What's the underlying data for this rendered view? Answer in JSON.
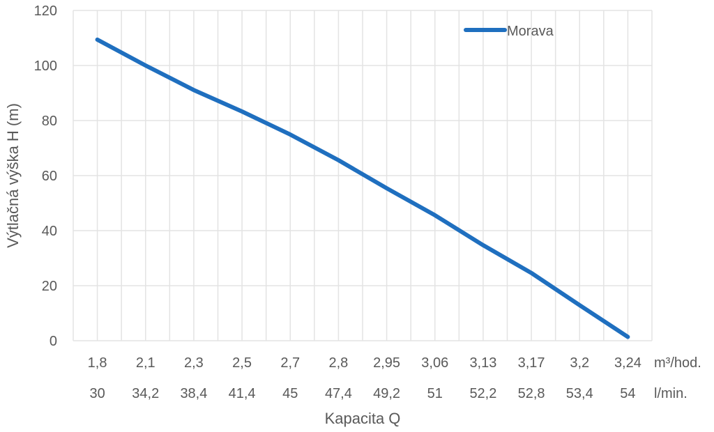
{
  "chart_data": {
    "type": "line",
    "title": "",
    "xlabel": "Kapacita Q",
    "ylabel": "Výtlačná výška H (m)",
    "ylim": [
      0,
      120
    ],
    "yticks": [
      0,
      20,
      40,
      60,
      80,
      100,
      120
    ],
    "grid": true,
    "legend_position": "top-right-inside",
    "categories": [
      "1,8",
      "2,1",
      "2,3",
      "2,5",
      "2,7",
      "2,8",
      "2,95",
      "3,06",
      "3,13",
      "3,17",
      "3,2",
      "3,24"
    ],
    "categories_row1_unit": "m³/hod.",
    "categories_row2": [
      "30",
      "34,2",
      "38,4",
      "41,4",
      "45",
      "47,4",
      "49,2",
      "51",
      "52,2",
      "52,8",
      "53,4",
      "54"
    ],
    "categories_row2_unit": "l/min.",
    "series": [
      {
        "name": "Morava",
        "color": "#1f6fbf",
        "values": [
          109.4,
          100,
          91.1,
          83.3,
          74.9,
          65.6,
          55.4,
          45.6,
          34.7,
          24.6,
          12.9,
          1.4
        ]
      }
    ]
  },
  "colors": {
    "grid": "#e3e3e3",
    "text": "#595959",
    "series": "#1f6fbf"
  }
}
